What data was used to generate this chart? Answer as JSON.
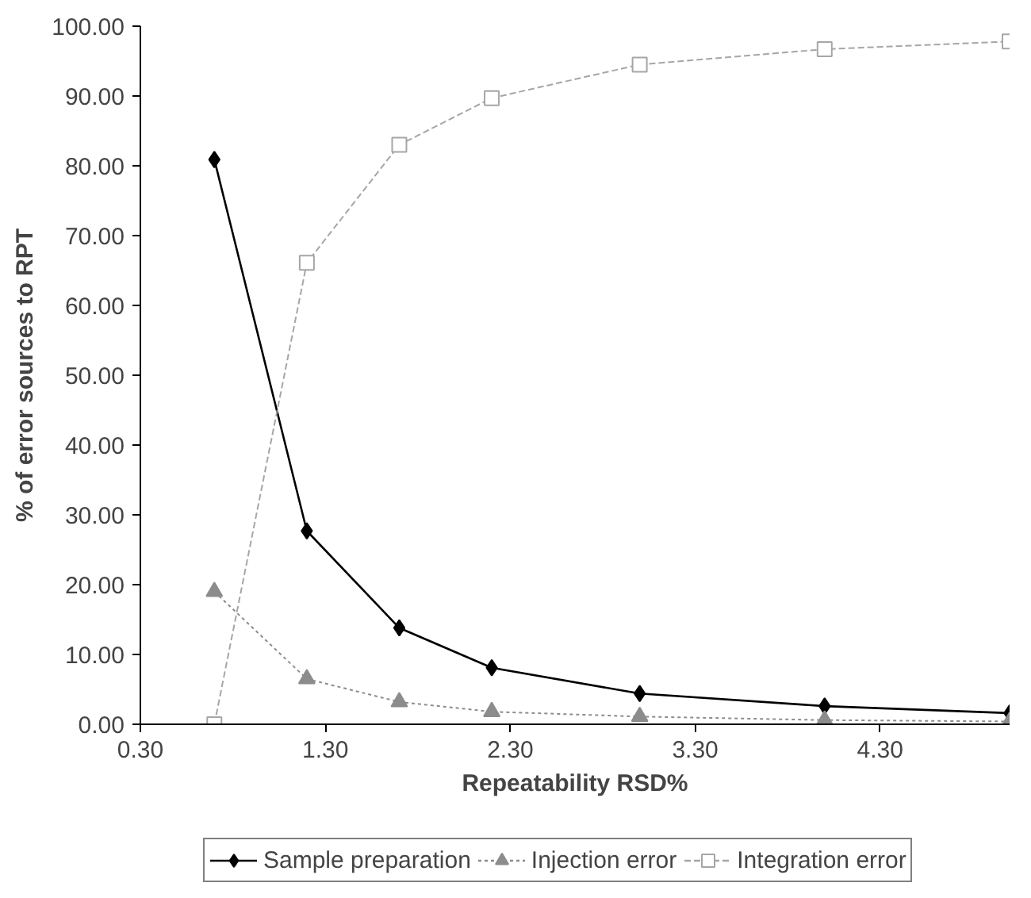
{
  "chart_data": {
    "type": "line",
    "xlabel": "Repeatability RSD%",
    "ylabel": "% of error sources to RPT",
    "x": [
      0.7,
      1.2,
      1.7,
      2.2,
      3.0,
      4.0,
      5.0
    ],
    "xlim": [
      0.3,
      5.0
    ],
    "xticks": [
      {
        "value": 0.3,
        "label": "0.30"
      },
      {
        "value": 1.3,
        "label": "1.30"
      },
      {
        "value": 2.3,
        "label": "2.30"
      },
      {
        "value": 3.3,
        "label": "3.30"
      },
      {
        "value": 4.3,
        "label": "4.30"
      }
    ],
    "ylim": [
      0,
      100
    ],
    "yticks": [
      {
        "value": 0,
        "label": "0.00"
      },
      {
        "value": 10,
        "label": "10.00"
      },
      {
        "value": 20,
        "label": "20.00"
      },
      {
        "value": 30,
        "label": "30.00"
      },
      {
        "value": 40,
        "label": "40.00"
      },
      {
        "value": 50,
        "label": "50.00"
      },
      {
        "value": 60,
        "label": "60.00"
      },
      {
        "value": 70,
        "label": "70.00"
      },
      {
        "value": 80,
        "label": "80.00"
      },
      {
        "value": 90,
        "label": "90.00"
      },
      {
        "value": 100,
        "label": "100.00"
      }
    ],
    "grid": false,
    "legend": "bottom",
    "series": [
      {
        "name": "Sample preparation",
        "color": "#000000",
        "marker": "diamond",
        "line_style": "solid",
        "values": [
          80.9,
          27.7,
          13.8,
          8.1,
          4.4,
          2.6,
          1.6
        ]
      },
      {
        "name": "Injection error",
        "color": "#8c8c8c",
        "marker": "triangle",
        "line_style": "dotted",
        "values": [
          19.0,
          6.5,
          3.2,
          1.8,
          1.1,
          0.6,
          0.4
        ]
      },
      {
        "name": "Integration error",
        "color": "#a6a6a6",
        "marker": "square",
        "line_style": "dashed",
        "values": [
          0,
          66.1,
          83.0,
          89.7,
          94.5,
          96.7,
          97.8
        ]
      }
    ]
  }
}
